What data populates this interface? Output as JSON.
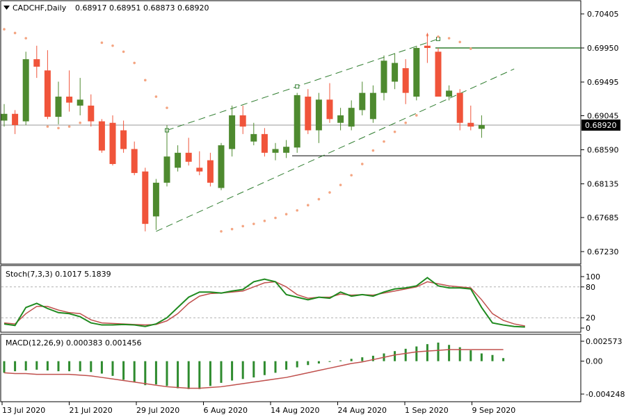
{
  "header": {
    "symbol_label": "CADCHF,Daily",
    "ohlc": "0.68917 0.68951 0.68873 0.68920",
    "menu_icon": "triangle-down-icon"
  },
  "price_panel": {
    "y_ticks": [
      "0.70405",
      "0.69950",
      "0.69495",
      "0.69045",
      "0.68590",
      "0.68135",
      "0.67685",
      "0.67230"
    ],
    "current_price": "0.68920"
  },
  "stoch_panel": {
    "label": "Stoch(7,3,3) 0.1017 5.1839",
    "y_ticks": [
      "100",
      "80",
      "20",
      "0"
    ]
  },
  "macd_panel": {
    "label": "MACD(12,26,9) 0.000383 0.001456",
    "y_ticks": [
      "0.002573",
      "0.00",
      "-0.004248"
    ]
  },
  "x_axis": {
    "labels": [
      "13 Jul 2020",
      "21 Jul 2020",
      "29 Jul 2020",
      "6 Aug 2020",
      "14 Aug 2020",
      "24 Aug 2020",
      "1 Sep 2020",
      "9 Sep 2020"
    ]
  },
  "colors": {
    "bull": "#4e8a2f",
    "bear": "#f0543a",
    "sar": "#f4a582",
    "trendline": "#2f7d2f",
    "stoch_main": "#1f8a1f",
    "stoch_signal": "#c0504d",
    "macd_hist": "#2e8b2e",
    "macd_signal": "#c0504d"
  },
  "chart_data": {
    "type": "candlestick",
    "symbol": "CADCHF",
    "timeframe": "Daily",
    "dates": [
      "13 Jul 2020",
      "21 Jul 2020",
      "29 Jul 2020",
      "6 Aug 2020",
      "14 Aug 2020",
      "24 Aug 2020",
      "1 Sep 2020",
      "9 Sep 2020"
    ],
    "candles": [
      {
        "o": 0.6898,
        "h": 0.692,
        "l": 0.689,
        "c": 0.6907
      },
      {
        "o": 0.6907,
        "h": 0.6912,
        "l": 0.688,
        "c": 0.6892
      },
      {
        "o": 0.6897,
        "h": 0.699,
        "l": 0.6892,
        "c": 0.698
      },
      {
        "o": 0.698,
        "h": 0.6998,
        "l": 0.6955,
        "c": 0.697
      },
      {
        "o": 0.6965,
        "h": 0.6992,
        "l": 0.69,
        "c": 0.6903
      },
      {
        "o": 0.6903,
        "h": 0.695,
        "l": 0.6893,
        "c": 0.693
      },
      {
        "o": 0.693,
        "h": 0.6965,
        "l": 0.691,
        "c": 0.6922
      },
      {
        "o": 0.6918,
        "h": 0.6955,
        "l": 0.6905,
        "c": 0.6926
      },
      {
        "o": 0.6918,
        "h": 0.6933,
        "l": 0.689,
        "c": 0.6897
      },
      {
        "o": 0.6897,
        "h": 0.69,
        "l": 0.6855,
        "c": 0.6858
      },
      {
        "o": 0.6895,
        "h": 0.6905,
        "l": 0.6838,
        "c": 0.684
      },
      {
        "o": 0.6885,
        "h": 0.6898,
        "l": 0.6855,
        "c": 0.686
      },
      {
        "o": 0.686,
        "h": 0.687,
        "l": 0.6825,
        "c": 0.6828
      },
      {
        "o": 0.683,
        "h": 0.6835,
        "l": 0.675,
        "c": 0.676
      },
      {
        "o": 0.677,
        "h": 0.682,
        "l": 0.6752,
        "c": 0.6815
      },
      {
        "o": 0.6815,
        "h": 0.6892,
        "l": 0.681,
        "c": 0.685
      },
      {
        "o": 0.6835,
        "h": 0.6865,
        "l": 0.683,
        "c": 0.6855
      },
      {
        "o": 0.6855,
        "h": 0.6875,
        "l": 0.6838,
        "c": 0.6843
      },
      {
        "o": 0.6835,
        "h": 0.6857,
        "l": 0.6825,
        "c": 0.683
      },
      {
        "o": 0.6845,
        "h": 0.6855,
        "l": 0.681,
        "c": 0.6815
      },
      {
        "o": 0.6808,
        "h": 0.6868,
        "l": 0.6805,
        "c": 0.6865
      },
      {
        "o": 0.686,
        "h": 0.6918,
        "l": 0.685,
        "c": 0.6905
      },
      {
        "o": 0.6905,
        "h": 0.6918,
        "l": 0.688,
        "c": 0.689
      },
      {
        "o": 0.687,
        "h": 0.6895,
        "l": 0.6865,
        "c": 0.688
      },
      {
        "o": 0.688,
        "h": 0.6888,
        "l": 0.685,
        "c": 0.6855
      },
      {
        "o": 0.6855,
        "h": 0.6868,
        "l": 0.6845,
        "c": 0.686
      },
      {
        "o": 0.6855,
        "h": 0.6872,
        "l": 0.6848,
        "c": 0.6863
      },
      {
        "o": 0.6862,
        "h": 0.6935,
        "l": 0.6855,
        "c": 0.6932
      },
      {
        "o": 0.693,
        "h": 0.694,
        "l": 0.688,
        "c": 0.6885
      },
      {
        "o": 0.6885,
        "h": 0.6935,
        "l": 0.6868,
        "c": 0.6926
      },
      {
        "o": 0.6926,
        "h": 0.6948,
        "l": 0.6895,
        "c": 0.69
      },
      {
        "o": 0.6895,
        "h": 0.6915,
        "l": 0.6885,
        "c": 0.6905
      },
      {
        "o": 0.689,
        "h": 0.6925,
        "l": 0.6885,
        "c": 0.6915
      },
      {
        "o": 0.6912,
        "h": 0.695,
        "l": 0.6905,
        "c": 0.6935
      },
      {
        "o": 0.69,
        "h": 0.6945,
        "l": 0.6895,
        "c": 0.6935
      },
      {
        "o": 0.6935,
        "h": 0.6985,
        "l": 0.6925,
        "c": 0.6978
      },
      {
        "o": 0.695,
        "h": 0.6988,
        "l": 0.694,
        "c": 0.6975
      },
      {
        "o": 0.6968,
        "h": 0.698,
        "l": 0.692,
        "c": 0.6935
      },
      {
        "o": 0.693,
        "h": 0.6998,
        "l": 0.6925,
        "c": 0.6995
      },
      {
        "o": 0.6998,
        "h": 0.7015,
        "l": 0.6975,
        "c": 0.6995
      },
      {
        "o": 0.699,
        "h": 0.6995,
        "l": 0.693,
        "c": 0.693
      },
      {
        "o": 0.693,
        "h": 0.6945,
        "l": 0.6925,
        "c": 0.6938
      },
      {
        "o": 0.6935,
        "h": 0.694,
        "l": 0.6885,
        "c": 0.6895
      },
      {
        "o": 0.6895,
        "h": 0.6918,
        "l": 0.6885,
        "c": 0.689
      },
      {
        "o": 0.6887,
        "h": 0.6905,
        "l": 0.6875,
        "c": 0.6892
      }
    ],
    "parabolic_sar": [
      {
        "i": 0,
        "v": 0.702
      },
      {
        "i": 1,
        "v": 0.7015
      },
      {
        "i": 2,
        "v": 0.7008
      },
      {
        "i": 4,
        "v": 0.689
      },
      {
        "i": 5,
        "v": 0.6888
      },
      {
        "i": 6,
        "v": 0.689
      },
      {
        "i": 7,
        "v": 0.6895
      },
      {
        "i": 8,
        "v": 0.69
      },
      {
        "i": 9,
        "v": 0.7002
      },
      {
        "i": 10,
        "v": 0.6998
      },
      {
        "i": 11,
        "v": 0.699
      },
      {
        "i": 12,
        "v": 0.6975
      },
      {
        "i": 13,
        "v": 0.6952
      },
      {
        "i": 14,
        "v": 0.693
      },
      {
        "i": 15,
        "v": 0.6915
      },
      {
        "i": 20,
        "v": 0.675
      },
      {
        "i": 21,
        "v": 0.6753
      },
      {
        "i": 22,
        "v": 0.6757
      },
      {
        "i": 23,
        "v": 0.676
      },
      {
        "i": 24,
        "v": 0.6764
      },
      {
        "i": 25,
        "v": 0.6768
      },
      {
        "i": 26,
        "v": 0.6773
      },
      {
        "i": 27,
        "v": 0.6778
      },
      {
        "i": 28,
        "v": 0.6785
      },
      {
        "i": 29,
        "v": 0.6793
      },
      {
        "i": 30,
        "v": 0.6802
      },
      {
        "i": 31,
        "v": 0.6812
      },
      {
        "i": 32,
        "v": 0.6825
      },
      {
        "i": 33,
        "v": 0.684
      },
      {
        "i": 34,
        "v": 0.6858
      },
      {
        "i": 35,
        "v": 0.687
      },
      {
        "i": 36,
        "v": 0.6883
      },
      {
        "i": 37,
        "v": 0.6895
      },
      {
        "i": 38,
        "v": 0.6905
      },
      {
        "i": 39,
        "v": 0.7012
      },
      {
        "i": 40,
        "v": 0.701
      },
      {
        "i": 41,
        "v": 0.7008
      },
      {
        "i": 42,
        "v": 0.7003
      },
      {
        "i": 43,
        "v": 0.6994
      }
    ],
    "horizontal_levels": [
      0.6995,
      0.6851
    ],
    "current_price_line": 0.6892,
    "channel": {
      "upper": {
        "from": {
          "i": 15,
          "v": 0.6885
        },
        "to": {
          "i": 40,
          "v": 0.7007
        }
      },
      "lower": {
        "from": {
          "i": 14,
          "v": 0.675
        },
        "to": {
          "i": 47,
          "v": 0.6967
        }
      }
    },
    "stochastic": {
      "name": "Stoch(7,3,3)",
      "ylim": [
        0,
        100
      ],
      "levels": [
        80,
        20
      ],
      "main": [
        8,
        5,
        40,
        48,
        38,
        30,
        28,
        22,
        10,
        6,
        6,
        7,
        6,
        3,
        8,
        20,
        40,
        60,
        70,
        70,
        68,
        72,
        75,
        90,
        95,
        90,
        65,
        60,
        55,
        60,
        58,
        70,
        62,
        65,
        62,
        70,
        76,
        78,
        82,
        98,
        82,
        78,
        78,
        76,
        40,
        10,
        6,
        3,
        2
      ],
      "signal": [
        10,
        8,
        28,
        42,
        42,
        35,
        30,
        28,
        16,
        10,
        9,
        8,
        7,
        6,
        7,
        14,
        28,
        48,
        62,
        67,
        68,
        70,
        72,
        80,
        88,
        90,
        80,
        65,
        58,
        60,
        60,
        66,
        64,
        65,
        64,
        68,
        72,
        76,
        80,
        90,
        86,
        82,
        80,
        78,
        55,
        28,
        15,
        8,
        4
      ]
    },
    "macd": {
      "name": "MACD(12,26,9)",
      "ylim": [
        -0.004248,
        0.002573
      ],
      "histogram": [
        -0.0015,
        -0.0013,
        -0.0012,
        -0.0011,
        -0.0012,
        -0.0013,
        -0.0013,
        -0.0013,
        -0.0014,
        -0.0016,
        -0.0019,
        -0.0024,
        -0.0027,
        -0.0031,
        -0.003,
        -0.0032,
        -0.0035,
        -0.0036,
        -0.0036,
        -0.0032,
        -0.0028,
        -0.0025,
        -0.0023,
        -0.0021,
        -0.0018,
        -0.0015,
        -0.0011,
        -0.0008,
        -0.0005,
        -0.0003,
        -0.0001,
        0.0001,
        0.0003,
        0.0005,
        0.0007,
        0.001,
        0.0013,
        0.0016,
        0.0019,
        0.0022,
        0.0024,
        0.0021,
        0.0018,
        0.0014,
        0.001,
        0.0008,
        0.0004
      ],
      "signal": [
        -0.0015,
        -0.0016,
        -0.0016,
        -0.0017,
        -0.0017,
        -0.0017,
        -0.0017,
        -0.0018,
        -0.0019,
        -0.0021,
        -0.0023,
        -0.0025,
        -0.0027,
        -0.0029,
        -0.0031,
        -0.0033,
        -0.0034,
        -0.0035,
        -0.0035,
        -0.0034,
        -0.0033,
        -0.0031,
        -0.0029,
        -0.0027,
        -0.0025,
        -0.0023,
        -0.0021,
        -0.0018,
        -0.0015,
        -0.0012,
        -0.0009,
        -0.0006,
        -0.0003,
        -0.0001,
        0.0002,
        0.0005,
        0.0008,
        0.001,
        0.0012,
        0.0013,
        0.0014,
        0.0015,
        0.0015,
        0.0015,
        0.0015,
        0.0015,
        0.0015
      ]
    }
  }
}
